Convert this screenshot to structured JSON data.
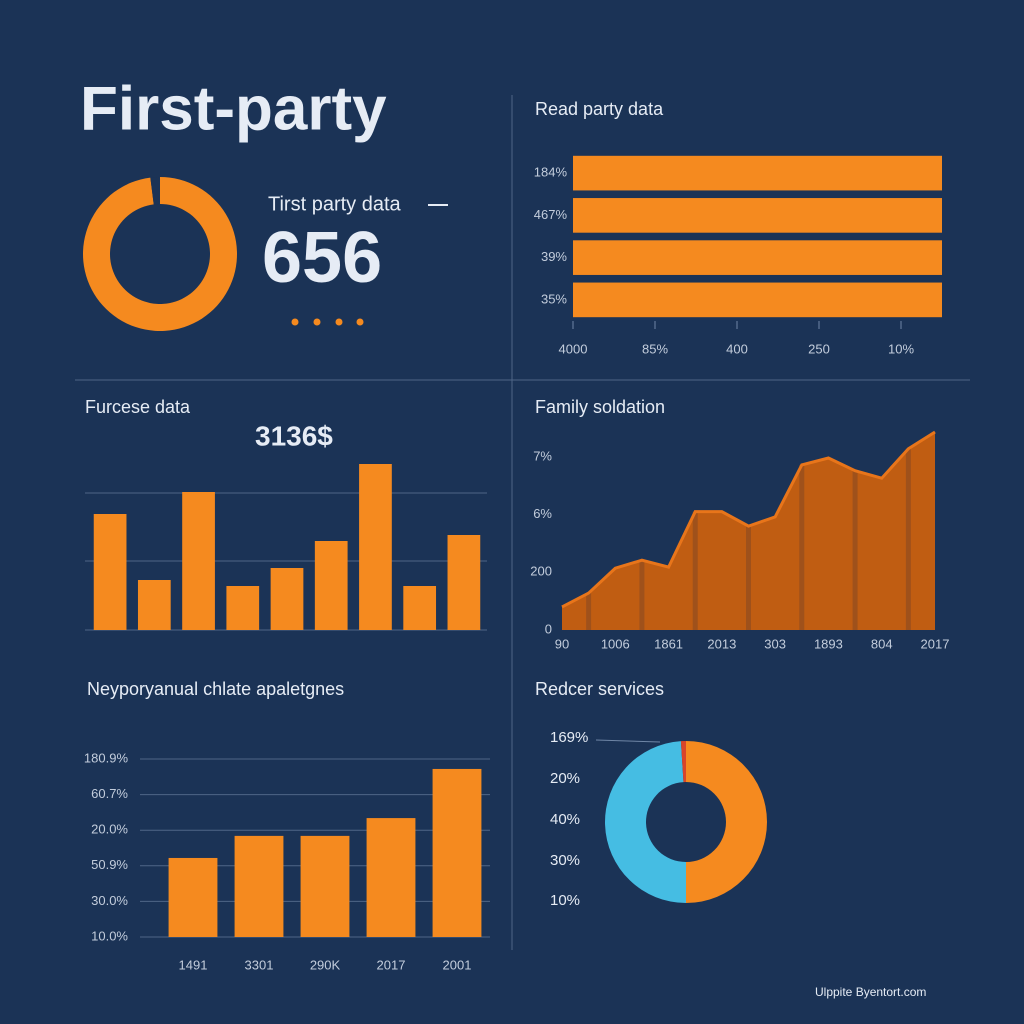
{
  "header": {
    "title": "First-party",
    "kpi_label": "Tirst party data",
    "kpi_value": "656"
  },
  "footer": "Ulppite Byentort.com",
  "chart_data": [
    {
      "type": "pie",
      "donut": true,
      "values": [
        98,
        2
      ],
      "colors": [
        "#f58a1f",
        "#1b3356"
      ]
    },
    {
      "type": "hbar",
      "title": "Read party data",
      "categories": [
        "184%",
        "467%",
        "39%",
        "35%"
      ],
      "values": [
        4.5,
        4.5,
        4.5,
        4.5
      ],
      "color": "#f58a1f",
      "xlim": [
        0,
        4.5
      ],
      "xticks": [
        {
          "value": 0,
          "label": "4000"
        },
        {
          "value": 1,
          "label": "85%"
        },
        {
          "value": 2,
          "label": "400"
        },
        {
          "value": 3,
          "label": "250"
        },
        {
          "value": 4,
          "label": "10%"
        }
      ]
    },
    {
      "type": "bar",
      "title": "Furcese data",
      "annotation": "3136$",
      "categories": [
        null,
        null,
        null,
        null,
        null,
        null,
        null,
        null,
        null
      ],
      "values": [
        116,
        50,
        138,
        44,
        62,
        89,
        166,
        44,
        95
      ],
      "color": "#f58a1f",
      "ylim": [
        0,
        180
      ]
    },
    {
      "type": "area",
      "title": "Family soldation",
      "categories": [
        "90",
        null,
        "1006",
        null,
        "1861",
        null,
        "2013",
        null,
        "303",
        null,
        "1893",
        null,
        "804",
        null,
        "2017"
      ],
      "values": [
        0.4,
        0.64,
        1.07,
        1.21,
        1.09,
        2.05,
        2.05,
        1.8,
        1.96,
        2.86,
        2.98,
        2.76,
        2.63,
        3.14,
        3.43
      ],
      "color": "#e8751a",
      "ylim": [
        0,
        3.5
      ],
      "yticks": [
        0,
        {
          "value": 1,
          "label": "200"
        },
        {
          "value": 2,
          "label": "6%"
        },
        {
          "value": 3,
          "label": "7%"
        }
      ]
    },
    {
      "type": "bar",
      "title": "Neyporyanual chlate apaletgnes",
      "categories": [
        "1491",
        "3301",
        "290K",
        "2017",
        "2001"
      ],
      "values": [
        2.22,
        2.84,
        2.84,
        3.34,
        4.72
      ],
      "color": "#f58a1f",
      "ylim": [
        0,
        5.3
      ],
      "grid": true,
      "yticks": [
        {
          "value": 0,
          "label": "10.0%"
        },
        {
          "value": 1,
          "label": "30.0%"
        },
        {
          "value": 2,
          "label": "50.9%"
        },
        {
          "value": 3,
          "label": "20.0%"
        },
        {
          "value": 4,
          "label": "60.7%"
        },
        {
          "value": 5,
          "label": "180.9%"
        }
      ]
    },
    {
      "type": "pie",
      "title": "Redcer services",
      "donut": true,
      "values": [
        50,
        49,
        1
      ],
      "colors": [
        "#f58a1f",
        "#45bde3",
        "#d8452a"
      ],
      "annotations": [
        "169%",
        "20%",
        "40%",
        "30%",
        "10%"
      ]
    }
  ]
}
